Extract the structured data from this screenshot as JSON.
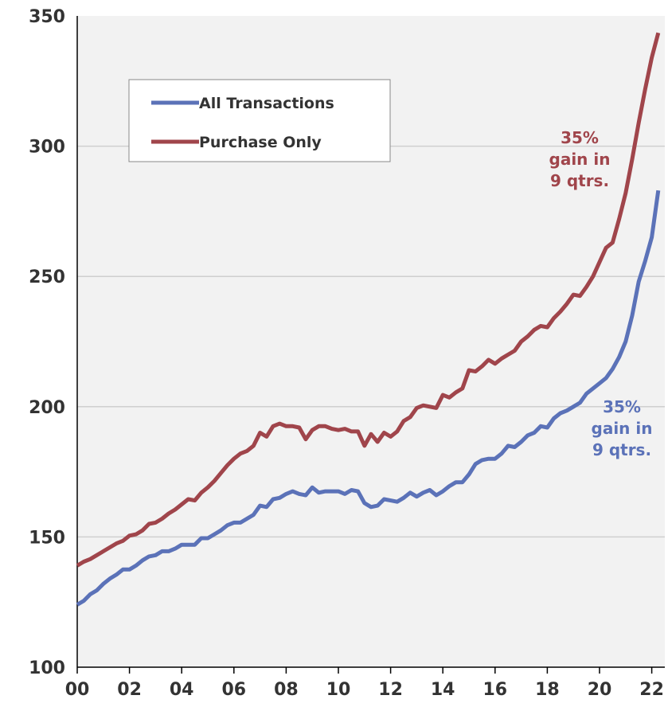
{
  "chart_data": {
    "type": "line",
    "x": [
      2000,
      2000.25,
      2000.5,
      2000.75,
      2001,
      2001.25,
      2001.5,
      2001.75,
      2002,
      2002.25,
      2002.5,
      2002.75,
      2003,
      2003.25,
      2003.5,
      2003.75,
      2004,
      2004.25,
      2004.5,
      2004.75,
      2005,
      2005.25,
      2005.5,
      2005.75,
      2006,
      2006.25,
      2006.5,
      2006.75,
      2007,
      2007.25,
      2007.5,
      2007.75,
      2008,
      2008.25,
      2008.5,
      2008.75,
      2009,
      2009.25,
      2009.5,
      2009.75,
      2010,
      2010.25,
      2010.5,
      2010.75,
      2011,
      2011.25,
      2011.5,
      2011.75,
      2012,
      2012.25,
      2012.5,
      2012.75,
      2013,
      2013.25,
      2013.5,
      2013.75,
      2014,
      2014.25,
      2014.5,
      2014.75,
      2015,
      2015.25,
      2015.5,
      2015.75,
      2016,
      2016.25,
      2016.5,
      2016.75,
      2017,
      2017.25,
      2017.5,
      2017.75,
      2018,
      2018.25,
      2018.5,
      2018.75,
      2019,
      2019.25,
      2019.5,
      2019.75,
      2020,
      2020.25,
      2020.5,
      2020.75,
      2021,
      2021.25,
      2021.5,
      2021.75,
      2022,
      2022.25
    ],
    "series": [
      {
        "name": "All Transactions",
        "color": "#5b72b8",
        "values": [
          124,
          125.5,
          128,
          129.5,
          132,
          134,
          135.5,
          137.5,
          137.5,
          139,
          141,
          142.5,
          143,
          144.5,
          144.5,
          145.5,
          147,
          147,
          147,
          149.5,
          149.5,
          151,
          152.5,
          154.5,
          155.5,
          155.5,
          157,
          158.5,
          162,
          161.5,
          164.5,
          165,
          166.5,
          167.5,
          166.5,
          166,
          169,
          167,
          167.5,
          167.5,
          167.5,
          166.5,
          168,
          167.5,
          163,
          161.5,
          162,
          164.5,
          164,
          163.5,
          165,
          167,
          165.5,
          167,
          168,
          166,
          167.5,
          169.5,
          171,
          171,
          174,
          178,
          179.5,
          180,
          180,
          182,
          185,
          184.5,
          186.5,
          189,
          190,
          192.5,
          192,
          195.5,
          197.5,
          198.5,
          200,
          201.5,
          205,
          207,
          209,
          211,
          214.5,
          219,
          225,
          235,
          248,
          256,
          265,
          283
        ]
      },
      {
        "name": "Purchase Only",
        "color": "#a0454b",
        "values": [
          139,
          140.5,
          141.5,
          143,
          144.5,
          146,
          147.5,
          148.5,
          150.5,
          151,
          152.5,
          155,
          155.5,
          157,
          159,
          160.5,
          162.5,
          164.5,
          164,
          167,
          169,
          171.5,
          174.5,
          177.5,
          180,
          182,
          183,
          185,
          190,
          188.5,
          192.5,
          193.5,
          192.5,
          192.5,
          192,
          187.5,
          191,
          192.5,
          192.5,
          191.5,
          191,
          191.5,
          190.5,
          190.5,
          185,
          189.5,
          186.5,
          190,
          188.5,
          190.5,
          194.5,
          196,
          199.5,
          200.5,
          200,
          199.5,
          204.5,
          203.5,
          205.5,
          207,
          214,
          213.5,
          215.5,
          218,
          216.5,
          218.5,
          220,
          221.5,
          225,
          227,
          229.5,
          231,
          230.5,
          234,
          236.5,
          239.5,
          243,
          242.5,
          246,
          250,
          255.5,
          261,
          263,
          272,
          282,
          295,
          309,
          322,
          334,
          343.5
        ]
      }
    ],
    "annotations": [
      {
        "lines": [
          "35%",
          "gain in",
          "9 qtrs."
        ],
        "color": "#a0454b",
        "series": 1
      },
      {
        "lines": [
          "35%",
          "gain in",
          "9 qtrs."
        ],
        "color": "#5b72b8",
        "series": 0
      }
    ],
    "xlim": [
      2000,
      2022.5
    ],
    "xticks": [
      {
        "value": 2000,
        "label": "00"
      },
      {
        "value": 2002,
        "label": "02"
      },
      {
        "value": 2004,
        "label": "04"
      },
      {
        "value": 2006,
        "label": "06"
      },
      {
        "value": 2008,
        "label": "08"
      },
      {
        "value": 2010,
        "label": "10"
      },
      {
        "value": 2012,
        "label": "12"
      },
      {
        "value": 2014,
        "label": "14"
      },
      {
        "value": 2016,
        "label": "16"
      },
      {
        "value": 2018,
        "label": "18"
      },
      {
        "value": 2020,
        "label": "20"
      },
      {
        "value": 2022,
        "label": "22"
      }
    ],
    "ylim": [
      100,
      350
    ],
    "yticks": [
      100,
      150,
      200,
      250,
      300,
      350
    ],
    "grid": true,
    "legend": "upper left"
  }
}
